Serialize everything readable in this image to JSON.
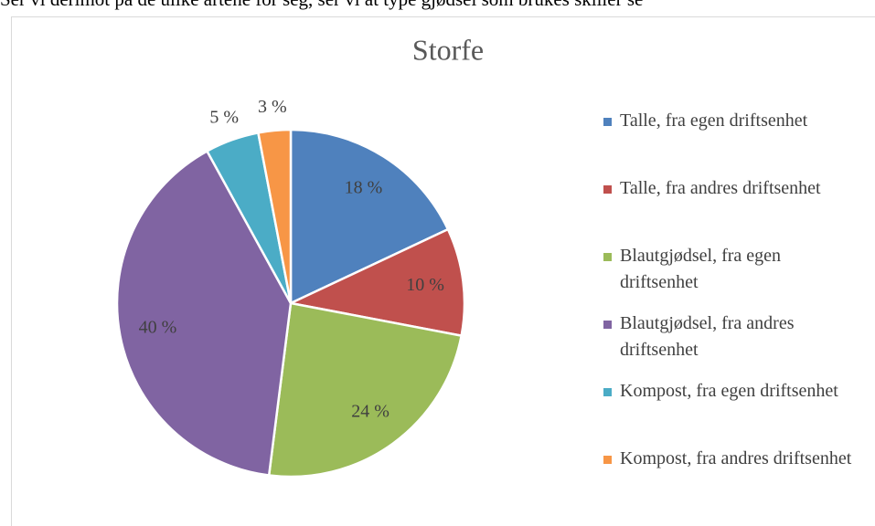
{
  "intro_text": "Ser vi derimot på de ulike artene for seg, ser vi at type gjødsel som brukes skiller se",
  "chart_data": {
    "type": "pie",
    "title": "Storfe",
    "categories": [
      "Talle, fra egen driftsenhet",
      "Talle, fra andres driftsenhet",
      "Blautgjødsel, fra egen driftsenhet",
      "Blautgjødsel, fra andres driftsenhet",
      "Kompost, fra egen driftsenhet",
      "Kompost, fra andres driftsenhet"
    ],
    "values": [
      18,
      10,
      24,
      40,
      5,
      3
    ],
    "value_labels": [
      "18 %",
      "10 %",
      "24 %",
      "40 %",
      "5 %",
      "3 %"
    ],
    "colors": [
      "#4f81bd",
      "#c0504d",
      "#9bbb59",
      "#8064a2",
      "#4bacc6",
      "#f79646"
    ],
    "legend": "right"
  }
}
